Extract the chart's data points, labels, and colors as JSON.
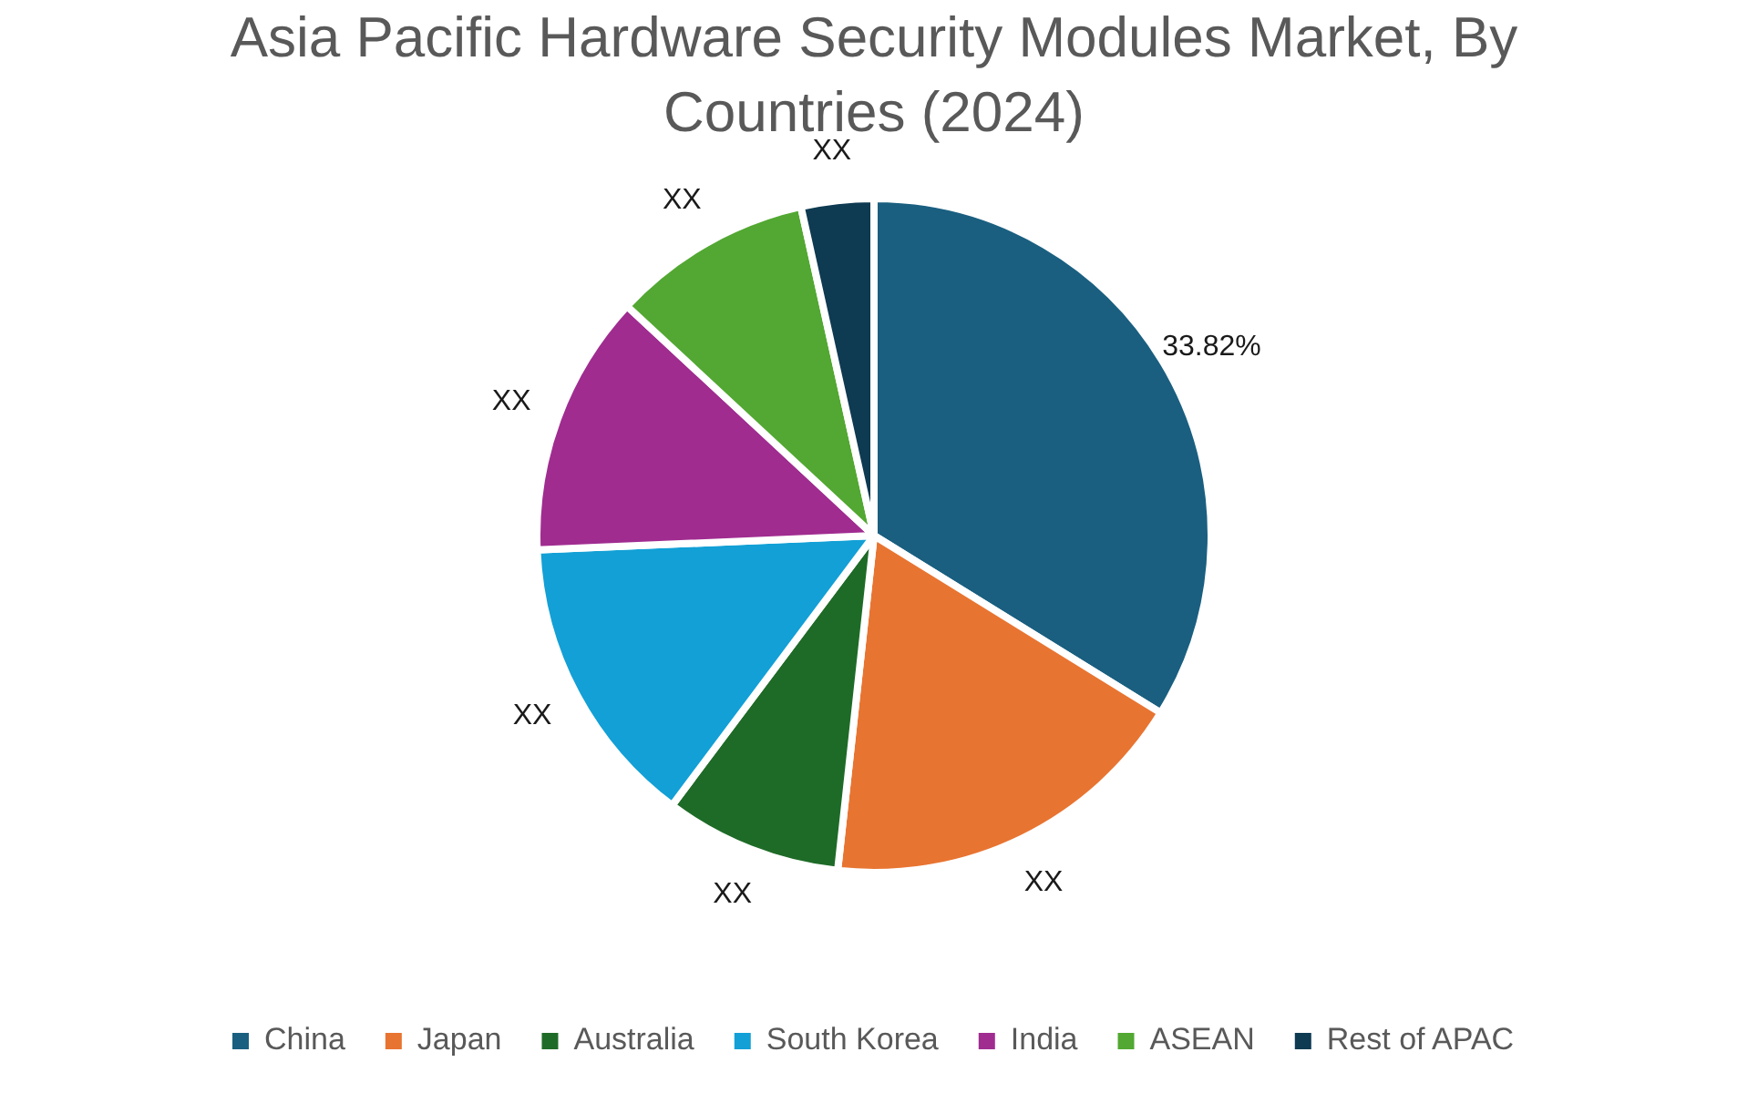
{
  "chart_data": {
    "type": "pie",
    "title": "Asia Pacific Hardware Security Modules Market, By Countries (2024)",
    "categories": [
      "China",
      "Japan",
      "Australia",
      "South Korea",
      "India",
      "ASEAN",
      "Rest of APAC"
    ],
    "values": [
      33.82,
      17.9,
      8.5,
      14.1,
      12.6,
      9.6,
      3.48
    ],
    "colors": [
      "#1a5f80",
      "#e87431",
      "#1e6b27",
      "#12a0d6",
      "#a02c90",
      "#52a832",
      "#0e3a52"
    ],
    "value_labels": [
      "33.82%",
      "XX",
      "XX",
      "XX",
      "XX",
      "XX",
      "XX"
    ],
    "legend": "bottom"
  }
}
